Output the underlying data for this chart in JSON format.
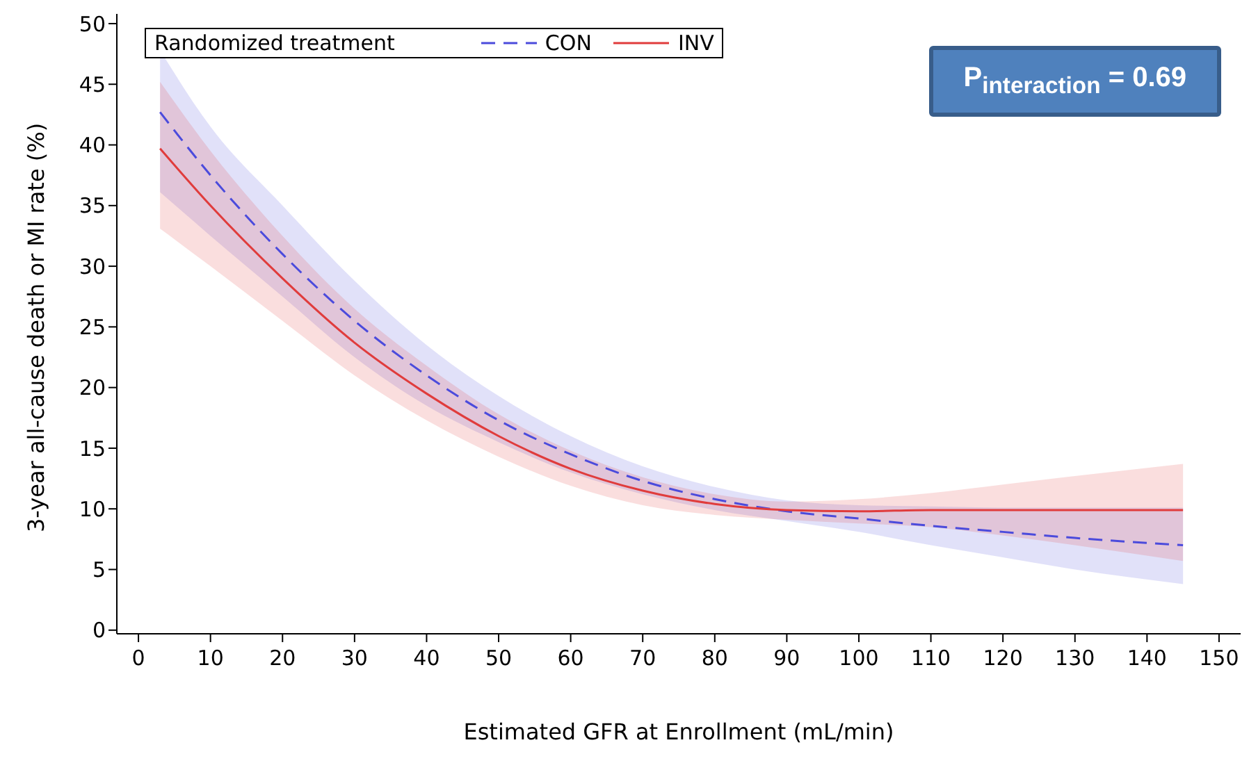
{
  "chart_data": {
    "type": "line",
    "xlabel": "Estimated GFR at Enrollment (mL/min)",
    "ylabel": "3-year all-cause death or MI rate (%)",
    "legend_title": "Randomized treatment",
    "legend": "top left",
    "grid": false,
    "marker": "none",
    "x": [
      3,
      10,
      20,
      30,
      40,
      50,
      60,
      70,
      80,
      90,
      100,
      110,
      120,
      130,
      145
    ],
    "xlim": [
      -3,
      153
    ],
    "xticks": [
      0,
      10,
      20,
      30,
      40,
      50,
      60,
      70,
      80,
      90,
      100,
      110,
      120,
      130,
      140,
      150
    ],
    "ylim": [
      -0.3,
      50.8
    ],
    "yticks": [
      0,
      5,
      10,
      15,
      20,
      25,
      30,
      35,
      40,
      45,
      50
    ],
    "series": [
      {
        "name": "CON",
        "color": "#4b4bdc",
        "line_style": "dashed",
        "values": [
          42.7,
          37.5,
          31,
          25.5,
          21,
          17.3,
          14.5,
          12.3,
          10.8,
          9.8,
          9.2,
          8.6,
          8.1,
          7.6,
          7.0
        ],
        "lower": [
          36.1,
          32.5,
          27.5,
          22.5,
          18.5,
          15.5,
          13,
          11.2,
          9.9,
          9,
          8.1,
          7,
          6,
          5,
          3.8
        ],
        "upper": [
          47.8,
          41.5,
          35,
          28.8,
          23.5,
          19.3,
          16,
          13.5,
          11.8,
          10.7,
          10.3,
          10.2,
          10.1,
          10.1,
          10.1
        ]
      },
      {
        "name": "INV",
        "color": "#e03c3c",
        "line_style": "solid",
        "values": [
          39.7,
          35,
          29,
          23.7,
          19.5,
          16,
          13.3,
          11.5,
          10.4,
          9.9,
          9.8,
          9.9,
          9.9,
          9.9,
          9.9
        ],
        "lower": [
          33.1,
          30,
          25.5,
          21,
          17.3,
          14.3,
          11.9,
          10.3,
          9.5,
          9.1,
          8.8,
          8.5,
          7.8,
          7,
          5.7
        ],
        "upper": [
          45.2,
          39.5,
          32.5,
          26.5,
          21.8,
          17.8,
          14.8,
          12.6,
          11.2,
          10.6,
          10.8,
          11.3,
          12,
          12.7,
          13.7
        ]
      }
    ],
    "annotations": [
      "P$_{interaction}$ = 0.69"
    ]
  }
}
